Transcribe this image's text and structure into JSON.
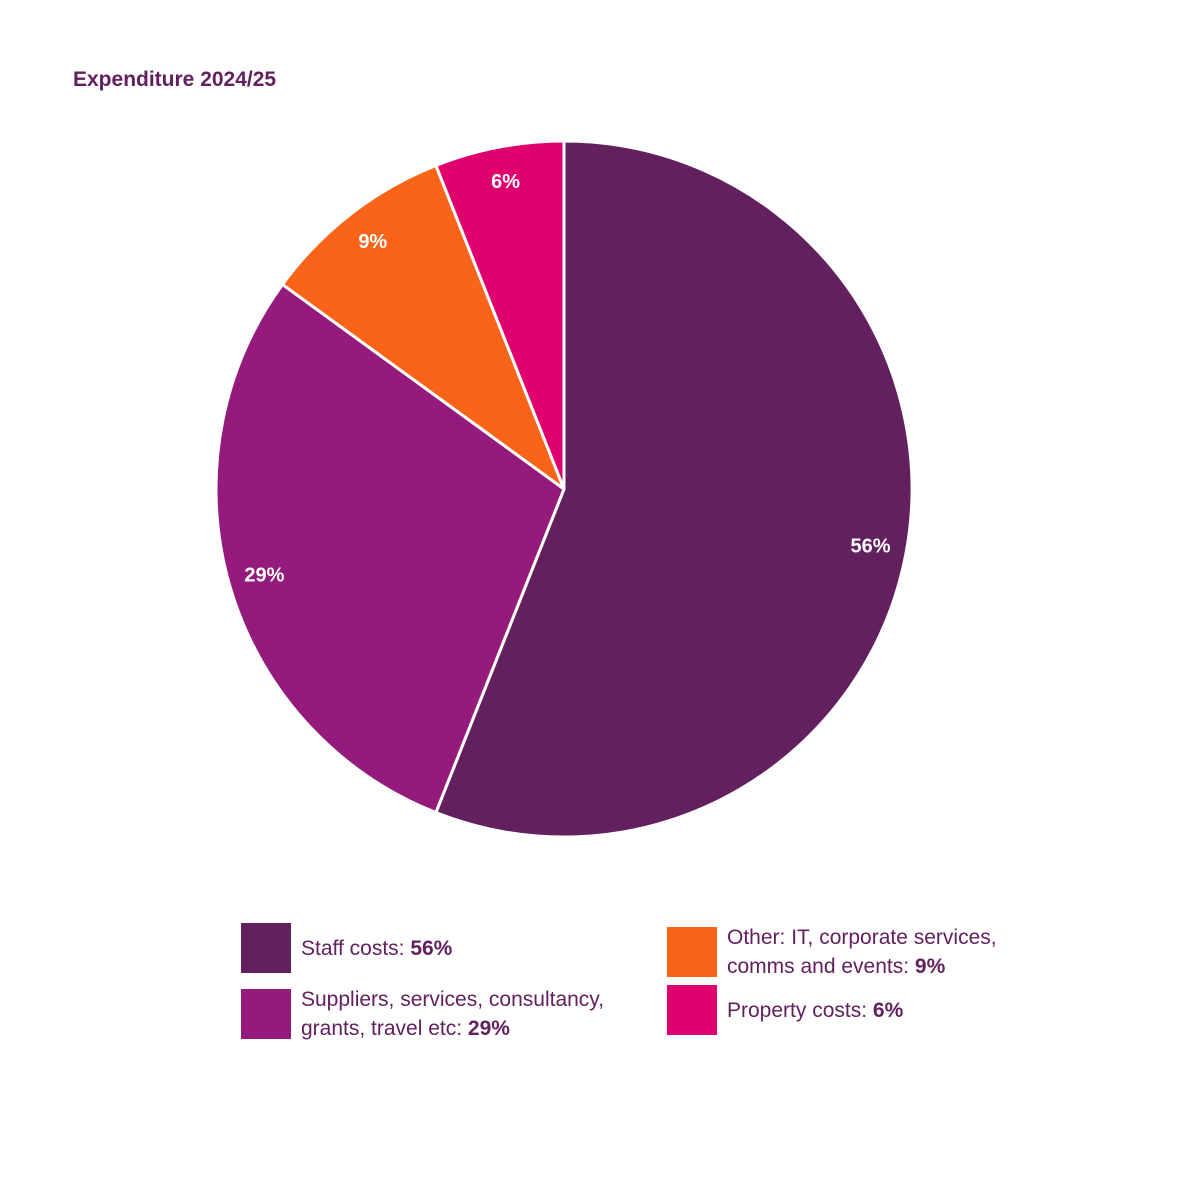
{
  "chart_data": {
    "type": "pie",
    "title": "Expenditure 2024/25",
    "slices": [
      {
        "name": "Staff costs",
        "value": 56,
        "label": "56%",
        "color": "#62205f"
      },
      {
        "name": "Suppliers, services, consultancy, grants, travel etc",
        "value": 29,
        "label": "29%",
        "color": "#941b7c"
      },
      {
        "name": "Other: IT, corporate services, comms and events",
        "value": 9,
        "label": "9%",
        "color": "#fa6419"
      },
      {
        "name": "Property costs",
        "value": 6,
        "label": "6%",
        "color": "#e0006d"
      }
    ],
    "legend_position": "bottom"
  },
  "legend": [
    {
      "line1": "Staff costs: ",
      "line2": "",
      "value": "56%",
      "color": "#62205f"
    },
    {
      "line1": "Suppliers, services, consultancy,",
      "line2": "grants, travel etc: ",
      "value": "29%",
      "color": "#941b7c"
    },
    {
      "line1": "Other: IT, corporate services,",
      "line2": "comms and events: ",
      "value": "9%",
      "color": "#fa6419"
    },
    {
      "line1": "Property costs: ",
      "line2": "",
      "value": "6%",
      "color": "#e0006d"
    }
  ]
}
